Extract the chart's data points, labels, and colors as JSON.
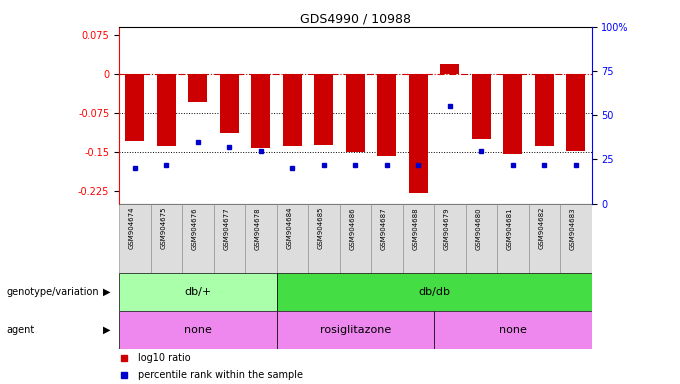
{
  "title": "GDS4990 / 10988",
  "samples": [
    "GSM904674",
    "GSM904675",
    "GSM904676",
    "GSM904677",
    "GSM904678",
    "GSM904684",
    "GSM904685",
    "GSM904686",
    "GSM904687",
    "GSM904688",
    "GSM904679",
    "GSM904680",
    "GSM904681",
    "GSM904682",
    "GSM904683"
  ],
  "log10_ratio": [
    -0.13,
    -0.14,
    -0.055,
    -0.115,
    -0.143,
    -0.14,
    -0.138,
    -0.15,
    -0.158,
    -0.23,
    0.018,
    -0.125,
    -0.155,
    -0.14,
    -0.148
  ],
  "percentile": [
    20,
    22,
    35,
    32,
    30,
    20,
    22,
    22,
    22,
    22,
    55,
    30,
    22,
    22,
    22
  ],
  "ylim_left": [
    -0.25,
    0.09
  ],
  "ylim_right": [
    0,
    100
  ],
  "left_ticks": [
    0.075,
    0,
    -0.075,
    -0.15,
    -0.225
  ],
  "right_ticks": [
    100,
    75,
    50,
    25,
    0
  ],
  "right_tick_labels": [
    "100%",
    "75",
    "50",
    "25",
    "0"
  ],
  "genotype_groups": [
    {
      "label": "db/+",
      "start": 0,
      "end": 5,
      "color": "#aaffaa"
    },
    {
      "label": "db/db",
      "start": 5,
      "end": 15,
      "color": "#44dd44"
    }
  ],
  "agent_groups": [
    {
      "label": "none",
      "start": 0,
      "end": 5,
      "color": "#ee88ee"
    },
    {
      "label": "rosiglitazone",
      "start": 5,
      "end": 10,
      "color": "#ee88ee"
    },
    {
      "label": "none",
      "start": 10,
      "end": 15,
      "color": "#ee88ee"
    }
  ],
  "bar_color": "#CC0000",
  "dot_color": "#0000CC",
  "ref_line_color": "#CC0000",
  "grid_line_color": "#000000",
  "bg_color": "#FFFFFF",
  "label_row1": "genotype/variation",
  "label_row2": "agent",
  "legend_red": "log10 ratio",
  "legend_blue": "percentile rank within the sample"
}
